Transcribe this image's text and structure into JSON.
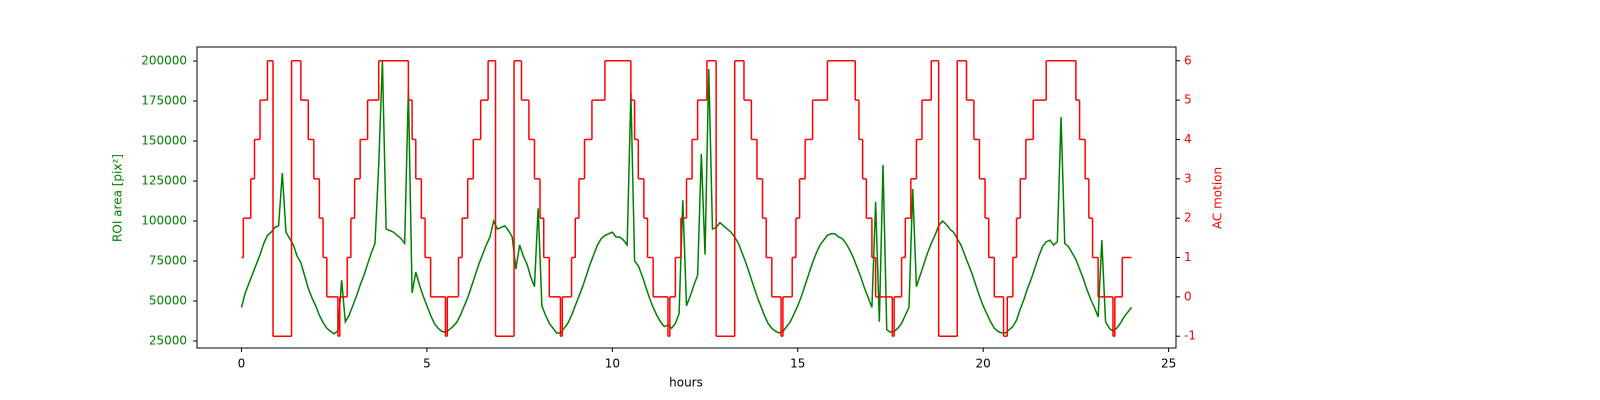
{
  "chart_data": {
    "type": "line",
    "xlabel": "hours",
    "ylabel": "ROI area [pix²]",
    "y2label": "AC motion",
    "xlim": [
      -1.2,
      25.2
    ],
    "xticks": [
      0,
      5,
      10,
      15,
      20,
      25
    ],
    "ylim": [
      20600,
      208800
    ],
    "yticks": [
      25000,
      50000,
      75000,
      100000,
      125000,
      150000,
      175000,
      200000
    ],
    "y2lim": [
      -1.3,
      6.35
    ],
    "y2ticks": [
      -1,
      0,
      1,
      2,
      3,
      4,
      5,
      6
    ],
    "series": [
      {
        "color": "#008000",
        "x": [
          0,
          0.1,
          0.2,
          0.3,
          0.4,
          0.5,
          0.6,
          0.7,
          0.8,
          0.9,
          1,
          1.1,
          1.2,
          1.3,
          1.4,
          1.5,
          1.6,
          1.7,
          1.8,
          1.9,
          2,
          2.1,
          2.2,
          2.3,
          2.4,
          2.5,
          2.6,
          2.7,
          2.8,
          2.9,
          3,
          3.1,
          3.2,
          3.3,
          3.4,
          3.5,
          3.6,
          3.7,
          3.8,
          3.9,
          4,
          4.1,
          4.2,
          4.3,
          4.4,
          4.5,
          4.6,
          4.7,
          4.8,
          4.9,
          5,
          5.1,
          5.2,
          5.3,
          5.4,
          5.5,
          5.6,
          5.7,
          5.8,
          5.9,
          6,
          6.1,
          6.2,
          6.3,
          6.4,
          6.5,
          6.6,
          6.7,
          6.8,
          6.9,
          7,
          7.1,
          7.2,
          7.3,
          7.4,
          7.5,
          7.6,
          7.7,
          7.8,
          7.9,
          8,
          8.1,
          8.2,
          8.3,
          8.4,
          8.5,
          8.6,
          8.7,
          8.8,
          8.9,
          9,
          9.1,
          9.2,
          9.3,
          9.4,
          9.5,
          9.6,
          9.7,
          9.8,
          9.9,
          10,
          10.1,
          10.2,
          10.3,
          10.4,
          10.5,
          10.6,
          10.7,
          10.8,
          10.9,
          11,
          11.1,
          11.2,
          11.3,
          11.4,
          11.5,
          11.6,
          11.7,
          11.8,
          11.9,
          12,
          12.1,
          12.2,
          12.3,
          12.4,
          12.5,
          12.6,
          12.7,
          12.8,
          12.9,
          13,
          13.1,
          13.2,
          13.3,
          13.4,
          13.5,
          13.6,
          13.7,
          13.8,
          13.9,
          14,
          14.1,
          14.2,
          14.3,
          14.4,
          14.5,
          14.6,
          14.7,
          14.8,
          14.9,
          15,
          15.1,
          15.2,
          15.3,
          15.4,
          15.5,
          15.6,
          15.7,
          15.8,
          15.9,
          16,
          16.1,
          16.2,
          16.3,
          16.4,
          16.5,
          16.6,
          16.7,
          16.8,
          16.9,
          17,
          17.1,
          17.2,
          17.3,
          17.4,
          17.5,
          17.6,
          17.7,
          17.8,
          17.9,
          18,
          18.1,
          18.2,
          18.3,
          18.4,
          18.5,
          18.6,
          18.7,
          18.8,
          18.9,
          19,
          19.1,
          19.2,
          19.3,
          19.4,
          19.5,
          19.6,
          19.7,
          19.8,
          19.9,
          20,
          20.1,
          20.2,
          20.3,
          20.4,
          20.5,
          20.6,
          20.7,
          20.8,
          20.9,
          21,
          21.1,
          21.2,
          21.3,
          21.4,
          21.5,
          21.6,
          21.7,
          21.8,
          21.9,
          22,
          22.1,
          22.2,
          22.3,
          22.4,
          22.5,
          22.6,
          22.7,
          22.8,
          22.9,
          23,
          23.1,
          23.2,
          23.3,
          23.4,
          23.5,
          23.6,
          23.7,
          23.8,
          23.9,
          24
        ],
        "values": [
          46000,
          55000,
          61000,
          67000,
          73000,
          79000,
          86000,
          91000,
          93000,
          96000,
          97000,
          130000,
          93000,
          89000,
          85000,
          78000,
          74000,
          66000,
          58000,
          52000,
          47000,
          41000,
          36500,
          33000,
          31000,
          29500,
          31500,
          63000,
          37000,
          41000,
          47000,
          53000,
          60000,
          66000,
          73000,
          80000,
          86000,
          135000,
          200000,
          95000,
          94000,
          93000,
          91000,
          89000,
          86000,
          182000,
          55000,
          68000,
          60000,
          53000,
          47000,
          41000,
          36000,
          33000,
          31000,
          30500,
          32000,
          34000,
          36500,
          41000,
          46500,
          52000,
          59000,
          66000,
          73000,
          79000,
          85000,
          90000,
          100000,
          95000,
          96000,
          97000,
          94000,
          90000,
          70000,
          85000,
          78000,
          73000,
          65000,
          59000,
          108000,
          47000,
          41000,
          36000,
          33000,
          30000,
          30000,
          33000,
          36000,
          41000,
          47000,
          53000,
          59000,
          66000,
          73000,
          79000,
          85000,
          89000,
          91000,
          92000,
          93000,
          90000,
          90000,
          88000,
          85000,
          180000,
          75000,
          72000,
          66000,
          59000,
          52000,
          46000,
          41000,
          37000,
          34000,
          35000,
          33000,
          36000,
          42000,
          113000,
          47000,
          53000,
          60000,
          66000,
          142000,
          79000,
          195000,
          95000,
          96000,
          99000,
          97000,
          95000,
          93000,
          90000,
          86000,
          80000,
          74000,
          67000,
          60000,
          53000,
          47000,
          41000,
          36000,
          33000,
          31000,
          30000,
          31000,
          34000,
          37000,
          42000,
          47000,
          53000,
          60000,
          67000,
          74000,
          80000,
          85000,
          88000,
          91000,
          92000,
          92000,
          90000,
          89000,
          86000,
          82000,
          77000,
          71000,
          65000,
          58000,
          52000,
          46000,
          112000,
          37000,
          135000,
          32000,
          30500,
          31000,
          33000,
          36000,
          41000,
          46000,
          120000,
          59000,
          66000,
          73000,
          80000,
          86000,
          91000,
          97000,
          100000,
          98000,
          95000,
          93000,
          89000,
          85000,
          79000,
          73000,
          67000,
          60000,
          53000,
          47000,
          42000,
          37000,
          33000,
          31000,
          30000,
          30000,
          32000,
          34000,
          38000,
          45000,
          51000,
          58000,
          64000,
          71000,
          78000,
          84000,
          87000,
          88000,
          85000,
          87000,
          165000,
          86000,
          84000,
          80000,
          76000,
          70000,
          64000,
          57000,
          51000,
          46000,
          40000,
          88000,
          37000,
          33000,
          31000,
          33000,
          36000,
          40000,
          43000,
          46000
        ]
      },
      {
        "color": "#ff0000",
        "axis": "y2",
        "drawstyle": "steps-post",
        "x": [
          0,
          0.05,
          0.25,
          0.35,
          0.5,
          0.7,
          0.85,
          1.35,
          1.6,
          1.8,
          1.95,
          2.1,
          2.2,
          2.3,
          2.6,
          2.65,
          2.85,
          2.95,
          3.05,
          3.2,
          3.4,
          3.7,
          4.5,
          4.6,
          4.7,
          4.85,
          4.95,
          5.1,
          5.5,
          5.55,
          5.85,
          5.95,
          6.1,
          6.25,
          6.45,
          6.65,
          6.85,
          7.35,
          7.55,
          7.75,
          7.9,
          8.05,
          8.15,
          8.3,
          8.6,
          8.65,
          8.9,
          9,
          9.1,
          9.25,
          9.45,
          9.8,
          10.5,
          10.6,
          10.7,
          10.85,
          10.95,
          11.1,
          11.5,
          11.55,
          11.7,
          11.85,
          12,
          12.15,
          12.3,
          12.55,
          12.8,
          13.3,
          13.55,
          13.75,
          13.9,
          14.05,
          14.15,
          14.3,
          14.55,
          14.6,
          14.85,
          14.95,
          15.05,
          15.2,
          15.4,
          15.8,
          16.55,
          16.65,
          16.75,
          16.85,
          17,
          17.1,
          17.55,
          17.6,
          17.8,
          17.9,
          18.05,
          18.2,
          18.35,
          18.6,
          18.8,
          19.3,
          19.55,
          19.75,
          19.9,
          20.05,
          20.15,
          20.3,
          20.55,
          20.65,
          20.8,
          20.9,
          21,
          21.15,
          21.35,
          21.7,
          22.5,
          22.6,
          22.75,
          22.85,
          22.95,
          23.1,
          23.5,
          23.55,
          23.75,
          24
        ],
        "values": [
          1,
          2,
          3,
          4,
          5,
          6,
          -1,
          6,
          5,
          4,
          3,
          2,
          1,
          0,
          -1,
          0,
          1,
          2,
          3,
          4,
          5,
          6,
          5,
          4,
          3,
          2,
          1,
          0,
          -1,
          0,
          1,
          2,
          3,
          4,
          5,
          6,
          -1,
          6,
          5,
          4,
          3,
          2,
          1,
          0,
          -1,
          0,
          1,
          2,
          3,
          4,
          5,
          6,
          5,
          4,
          3,
          2,
          1,
          0,
          -1,
          0,
          1,
          2,
          3,
          4,
          5,
          6,
          -1,
          6,
          5,
          4,
          3,
          2,
          1,
          0,
          -1,
          0,
          1,
          2,
          3,
          4,
          5,
          6,
          5,
          4,
          3,
          2,
          1,
          0,
          -1,
          0,
          1,
          2,
          3,
          4,
          5,
          6,
          -1,
          6,
          5,
          4,
          3,
          2,
          1,
          0,
          -1,
          0,
          1,
          2,
          3,
          4,
          5,
          6,
          5,
          4,
          3,
          2,
          1,
          0,
          -1,
          0,
          1,
          1
        ]
      }
    ]
  }
}
